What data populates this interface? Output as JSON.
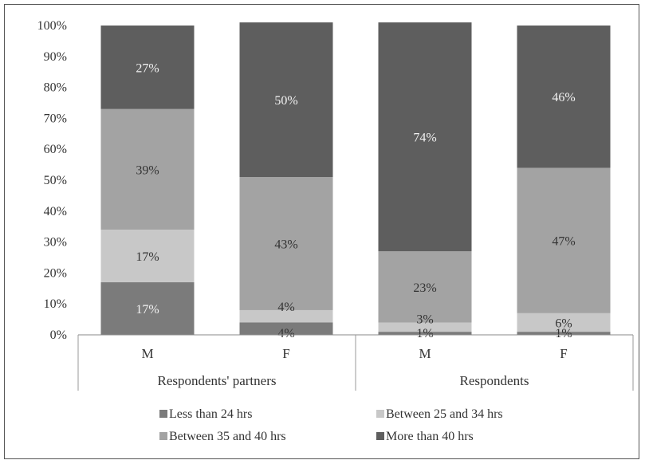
{
  "chart_data": {
    "type": "bar",
    "stacked": true,
    "percent": true,
    "groups": [
      {
        "label": "Respondents' partners",
        "categories": [
          "M",
          "F"
        ]
      },
      {
        "label": "Respondents",
        "categories": [
          "M",
          "F"
        ]
      }
    ],
    "categories": [
      "M",
      "F",
      "M",
      "F"
    ],
    "series": [
      {
        "name": "Less than 24 hrs",
        "color": "#7b7b7b",
        "values": [
          17,
          4,
          1,
          1
        ],
        "labels": [
          "17%",
          "4%",
          "1%",
          "1%"
        ]
      },
      {
        "name": "Between 25 and 34 hrs",
        "color": "#c8c8c8",
        "values": [
          17,
          4,
          3,
          6
        ],
        "labels": [
          "17%",
          "4%",
          "3%",
          "6%"
        ]
      },
      {
        "name": "Between 35 and 40 hrs",
        "color": "#a3a3a3",
        "values": [
          39,
          43,
          23,
          47
        ],
        "labels": [
          "39%",
          "43%",
          "23%",
          "47%"
        ]
      },
      {
        "name": "More than 40 hrs",
        "color": "#5e5e5e",
        "values": [
          27,
          50,
          74,
          46
        ],
        "labels": [
          "27%",
          "50%",
          "74%",
          "46%"
        ]
      }
    ],
    "ylim": [
      0,
      100
    ],
    "yticks": [
      "0%",
      "10%",
      "20%",
      "30%",
      "40%",
      "50%",
      "60%",
      "70%",
      "80%",
      "90%",
      "100%"
    ],
    "legend_position": "bottom",
    "grid": false
  }
}
